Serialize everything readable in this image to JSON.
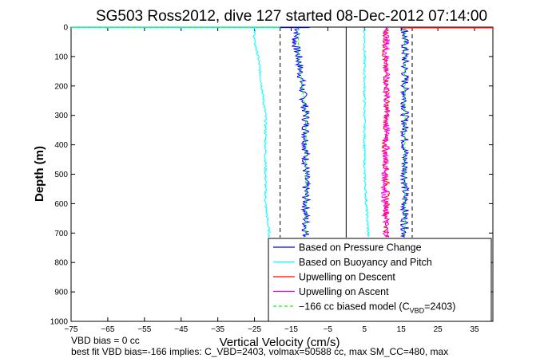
{
  "chart_data": {
    "type": "line",
    "title": "SG503 Ross2012, dive 127 started 08-Dec-2012 07:14:00",
    "xlabel": "Vertical Velocity (cm/s)",
    "ylabel": "Depth (m)",
    "xlim": [
      -75,
      40
    ],
    "ylim": [
      1000,
      0
    ],
    "xticks": [
      -75,
      -65,
      -55,
      -45,
      -35,
      -25,
      -15,
      -5,
      5,
      15,
      25,
      35
    ],
    "yticks": [
      0,
      100,
      200,
      300,
      400,
      500,
      600,
      700,
      800,
      900,
      1000
    ],
    "grid": false,
    "legend_location": "bottom-right",
    "depth_range_observed": [
      0,
      715
    ],
    "series": [
      {
        "name": "Based on Pressure Change",
        "color": "#0000ff",
        "style": "solid",
        "depth": [
          0,
          50,
          100,
          200,
          300,
          400,
          500,
          600,
          700,
          715
        ],
        "values": [
          -13,
          -14,
          -13,
          -12,
          -11,
          -11,
          -11,
          -11,
          -11,
          -11
        ],
        "mirror_values": [
          16,
          16,
          16,
          16,
          16,
          16,
          16,
          16,
          16,
          16
        ]
      },
      {
        "name": "Based on Buoyancy and Pitch",
        "color": "#00ffff",
        "style": "solid",
        "depth": [
          0,
          50,
          100,
          200,
          300,
          400,
          500,
          600,
          700,
          715
        ],
        "values": [
          -25,
          -25,
          -24,
          -23,
          -22,
          -22,
          -22,
          -22,
          -21,
          -21
        ],
        "mirror_values": [
          5,
          5,
          5,
          5,
          5,
          5,
          5,
          5.5,
          6,
          6
        ]
      },
      {
        "name": "Upwelling on Descent",
        "color": "#ff0000",
        "style": "solid",
        "depth": [
          0,
          100,
          200,
          300,
          400,
          500,
          600,
          700,
          715
        ],
        "values": [
          11,
          10.5,
          11,
          11,
          10.5,
          11,
          11,
          11,
          11
        ]
      },
      {
        "name": "Upwelling on Ascent",
        "color": "#ff00ff",
        "style": "solid",
        "depth": [
          0,
          100,
          200,
          300,
          400,
          500,
          600,
          700,
          715
        ],
        "values": [
          11,
          11,
          11,
          11,
          11,
          10.5,
          10.5,
          11,
          11
        ]
      },
      {
        "name": "−166 cc biased model (C",
        "name_sub": "VBD",
        "name_tail": "=2403)",
        "color": "#00ff00",
        "style": "dashed",
        "depth": [
          0,
          100,
          200,
          300,
          400,
          500,
          600,
          700,
          715
        ],
        "values": [
          -13,
          -13,
          -12,
          -11,
          -11,
          -11,
          -11,
          -11,
          -11
        ],
        "mirror_values": [
          16,
          16,
          16,
          16,
          16,
          16,
          16,
          16,
          16
        ]
      }
    ],
    "reference_lines": {
      "zero": 0,
      "dashed_left": -18,
      "dashed_right": 18
    }
  },
  "footer": {
    "line1": "VBD bias = 0 cc",
    "line2": "best fit VBD bias=-166 implies: C_VBD=2403, volmax=50588 cc, max SM_CC=480, max"
  }
}
